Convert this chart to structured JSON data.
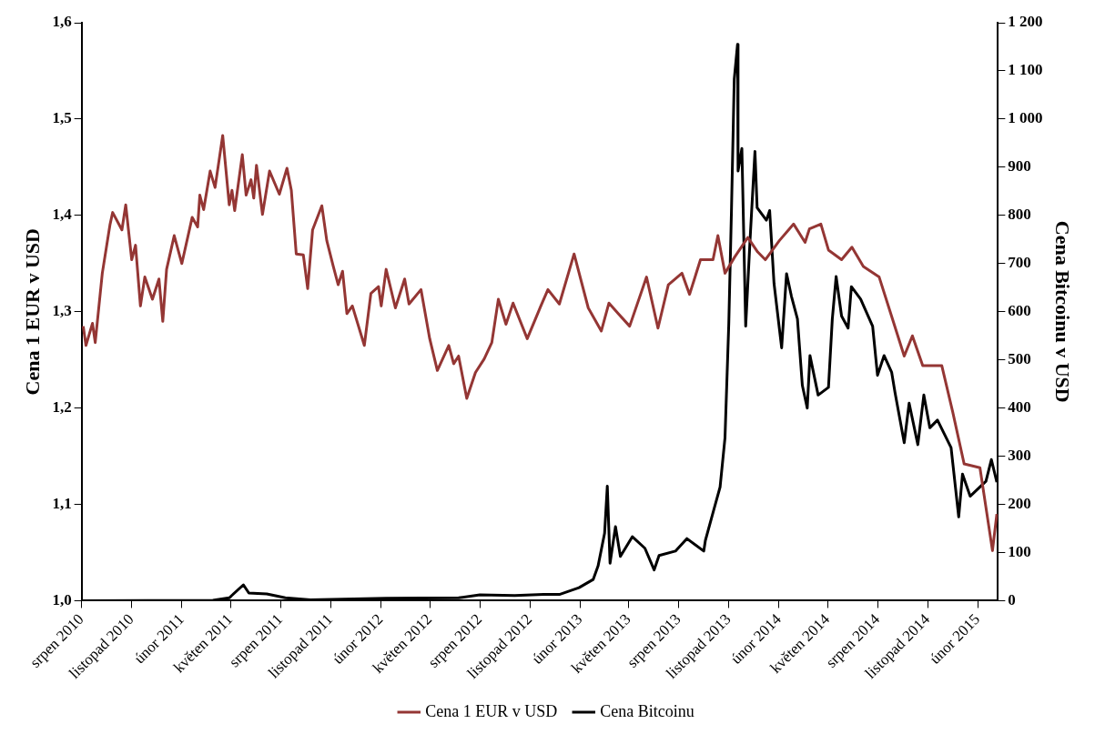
{
  "chart_data": {
    "type": "line",
    "ylabel": "Cena 1 EUR v USD",
    "y2label": "Cena Bitcoinu v USD",
    "legend": "bottom",
    "grid": false,
    "marker": "none",
    "line_style": "solid",
    "xlim": [
      "2010-08-01",
      "2015-03-10"
    ],
    "xticks": [
      {
        "value": "2010-08-01",
        "label": "srpen 2010"
      },
      {
        "value": "2010-11-01",
        "label": "listopad 2010"
      },
      {
        "value": "2011-02-01",
        "label": "únor 2011"
      },
      {
        "value": "2011-05-01",
        "label": "květen 2011"
      },
      {
        "value": "2011-08-01",
        "label": "srpen 2011"
      },
      {
        "value": "2011-11-01",
        "label": "listopad 2011"
      },
      {
        "value": "2012-02-01",
        "label": "únor 2012"
      },
      {
        "value": "2012-05-01",
        "label": "květen 2012"
      },
      {
        "value": "2012-08-01",
        "label": "srpen 2012"
      },
      {
        "value": "2012-11-01",
        "label": "listopad 2012"
      },
      {
        "value": "2013-02-01",
        "label": "únor 2013"
      },
      {
        "value": "2013-05-01",
        "label": "květen 2013"
      },
      {
        "value": "2013-08-01",
        "label": "srpen 2013"
      },
      {
        "value": "2013-11-01",
        "label": "listopad 2013"
      },
      {
        "value": "2014-02-01",
        "label": "únor 2014"
      },
      {
        "value": "2014-05-01",
        "label": "květen 2014"
      },
      {
        "value": "2014-08-01",
        "label": "srpen 2014"
      },
      {
        "value": "2014-11-01",
        "label": "listopad 2014"
      },
      {
        "value": "2015-02-01",
        "label": "únor 2015"
      }
    ],
    "ylim": [
      1.0,
      1.6
    ],
    "yticks": [
      {
        "value": 1.0,
        "label": "1,0"
      },
      {
        "value": 1.1,
        "label": "1,1"
      },
      {
        "value": 1.2,
        "label": "1,2"
      },
      {
        "value": 1.3,
        "label": "1,3"
      },
      {
        "value": 1.4,
        "label": "1,4"
      },
      {
        "value": 1.5,
        "label": "1,5"
      },
      {
        "value": 1.6,
        "label": "1,6"
      }
    ],
    "y2lim": [
      0,
      1200
    ],
    "y2ticks": [
      0,
      100,
      200,
      300,
      400,
      500,
      600,
      700,
      800,
      900,
      {
        "value": 1000,
        "label": "1 000"
      },
      {
        "value": 1100,
        "label": "1 100"
      },
      {
        "value": 1200,
        "label": "1 200"
      }
    ],
    "series": [
      {
        "name": "Cena 1 EUR v USD",
        "color": "#943634",
        "x": [
          "2010-08-04",
          "2010-08-09",
          "2010-08-21",
          "2010-08-26",
          "2010-09-08",
          "2010-09-22",
          "2010-09-27",
          "2010-10-14",
          "2010-10-21",
          "2010-11-01",
          "2010-11-08",
          "2010-11-17",
          "2010-11-25",
          "2010-12-09",
          "2010-12-21",
          "2010-12-28",
          "2011-01-04",
          "2011-01-18",
          "2011-02-01",
          "2011-02-20",
          "2011-03-02",
          "2011-03-06",
          "2011-03-13",
          "2011-03-25",
          "2011-04-03",
          "2011-04-17",
          "2011-04-29",
          "2011-05-04",
          "2011-05-09",
          "2011-05-23",
          "2011-05-30",
          "2011-06-08",
          "2011-06-13",
          "2011-06-18",
          "2011-06-29",
          "2011-07-12",
          "2011-07-30",
          "2011-08-13",
          "2011-08-21",
          "2011-08-30",
          "2011-09-12",
          "2011-09-20",
          "2011-09-29",
          "2011-10-16",
          "2011-10-25",
          "2011-11-06",
          "2011-11-15",
          "2011-11-23",
          "2011-12-01",
          "2011-12-11",
          "2012-01-02",
          "2012-01-14",
          "2012-01-28",
          "2012-02-02",
          "2012-02-11",
          "2012-02-28",
          "2012-03-16",
          "2012-03-24",
          "2012-04-15",
          "2012-05-01",
          "2012-05-15",
          "2012-06-05",
          "2012-06-14",
          "2012-06-23",
          "2012-07-08",
          "2012-07-24",
          "2012-08-09",
          "2012-08-23",
          "2012-09-04",
          "2012-09-18",
          "2012-10-01",
          "2012-10-27",
          "2012-11-21",
          "2012-12-04",
          "2012-12-25",
          "2013-01-21",
          "2013-02-16",
          "2013-03-12",
          "2013-03-26",
          "2013-04-12",
          "2013-05-03",
          "2013-06-03",
          "2013-06-24",
          "2013-07-13",
          "2013-08-07",
          "2013-08-21",
          "2013-09-10",
          "2013-10-03",
          "2013-10-12",
          "2013-10-25",
          "2013-11-12",
          "2013-12-06",
          "2013-12-24",
          "2014-01-07",
          "2014-02-02",
          "2014-02-28",
          "2014-03-21",
          "2014-03-29",
          "2014-04-19",
          "2014-05-03",
          "2014-05-27",
          "2014-06-15",
          "2014-07-06",
          "2014-08-04",
          "2014-08-27",
          "2014-09-19",
          "2014-10-04",
          "2014-10-23",
          "2014-11-27",
          "2014-12-17",
          "2015-01-07",
          "2015-02-05",
          "2015-02-28",
          "2015-03-08"
        ],
        "values": [
          1.285,
          1.265,
          1.288,
          1.268,
          1.34,
          1.39,
          1.403,
          1.385,
          1.411,
          1.354,
          1.369,
          1.306,
          1.336,
          1.313,
          1.334,
          1.29,
          1.344,
          1.379,
          1.35,
          1.398,
          1.388,
          1.421,
          1.406,
          1.446,
          1.429,
          1.483,
          1.411,
          1.426,
          1.405,
          1.463,
          1.421,
          1.437,
          1.418,
          1.452,
          1.401,
          1.446,
          1.422,
          1.449,
          1.426,
          1.36,
          1.359,
          1.324,
          1.385,
          1.41,
          1.374,
          1.347,
          1.328,
          1.342,
          1.298,
          1.306,
          1.265,
          1.319,
          1.326,
          1.306,
          1.344,
          1.304,
          1.334,
          1.308,
          1.323,
          1.272,
          1.239,
          1.265,
          1.246,
          1.254,
          1.21,
          1.237,
          1.251,
          1.268,
          1.313,
          1.287,
          1.309,
          1.272,
          1.306,
          1.323,
          1.308,
          1.36,
          1.304,
          1.28,
          1.309,
          1.298,
          1.285,
          1.336,
          1.283,
          1.328,
          1.34,
          1.318,
          1.354,
          1.354,
          1.379,
          1.34,
          1.357,
          1.377,
          1.362,
          1.354,
          1.374,
          1.391,
          1.372,
          1.386,
          1.391,
          1.364,
          1.354,
          1.367,
          1.347,
          1.336,
          1.295,
          1.254,
          1.275,
          1.244,
          1.244,
          1.196,
          1.142,
          1.138,
          1.052,
          1.09
        ]
      },
      {
        "name": "Cena Bitcoinu",
        "color": "#000000",
        "axis": "y2",
        "x": [
          "2010-08-01",
          "2011-03-30",
          "2011-04-29",
          "2011-05-25",
          "2011-06-04",
          "2011-07-07",
          "2011-08-10",
          "2011-09-25",
          "2012-02-11",
          "2012-06-23",
          "2012-08-01",
          "2012-10-04",
          "2012-11-26",
          "2012-12-25",
          "2013-01-30",
          "2013-02-25",
          "2013-03-06",
          "2013-03-18",
          "2013-03-23",
          "2013-03-28",
          "2013-04-07",
          "2013-04-16",
          "2013-05-08",
          "2013-05-31",
          "2013-06-17",
          "2013-06-26",
          "2013-07-26",
          "2013-08-16",
          "2013-09-16",
          "2013-09-19",
          "2013-10-06",
          "2013-10-16",
          "2013-10-25",
          "2013-11-01",
          "2013-11-06",
          "2013-11-11",
          "2013-11-17",
          "2013-11-18",
          "2013-11-25",
          "2013-12-02",
          "2013-12-10",
          "2013-12-19",
          "2013-12-23",
          "2014-01-09",
          "2014-01-15",
          "2014-01-23",
          "2014-02-06",
          "2014-02-15",
          "2014-02-24",
          "2014-03-07",
          "2014-03-16",
          "2014-03-25",
          "2014-03-30",
          "2014-04-14",
          "2014-05-03",
          "2014-05-10",
          "2014-05-17",
          "2014-05-27",
          "2014-06-08",
          "2014-06-14",
          "2014-07-01",
          "2014-07-23",
          "2014-08-01",
          "2014-08-13",
          "2014-08-27",
          "2014-09-02",
          "2014-09-19",
          "2014-09-28",
          "2014-10-14",
          "2014-10-25",
          "2014-11-05",
          "2014-11-19",
          "2014-12-14",
          "2014-12-28",
          "2015-01-04",
          "2015-01-18",
          "2015-02-16",
          "2015-02-26",
          "2015-03-08"
        ],
        "values": [
          0,
          1,
          6,
          33,
          16,
          14,
          6,
          2,
          5,
          6,
          12,
          11,
          13,
          13,
          27,
          44,
          72,
          140,
          238,
          78,
          154,
          92,
          133,
          109,
          64,
          94,
          103,
          129,
          103,
          125,
          195,
          236,
          338,
          576,
          816,
          1083,
          1155,
          892,
          939,
          570,
          749,
          933,
          816,
          790,
          810,
          659,
          525,
          679,
          632,
          585,
          447,
          400,
          509,
          427,
          443,
          585,
          673,
          591,
          566,
          652,
          626,
          570,
          468,
          509,
          474,
          433,
          328,
          410,
          324,
          427,
          359,
          375,
          318,
          174,
          263,
          217,
          248,
          293,
          246
        ]
      }
    ]
  }
}
